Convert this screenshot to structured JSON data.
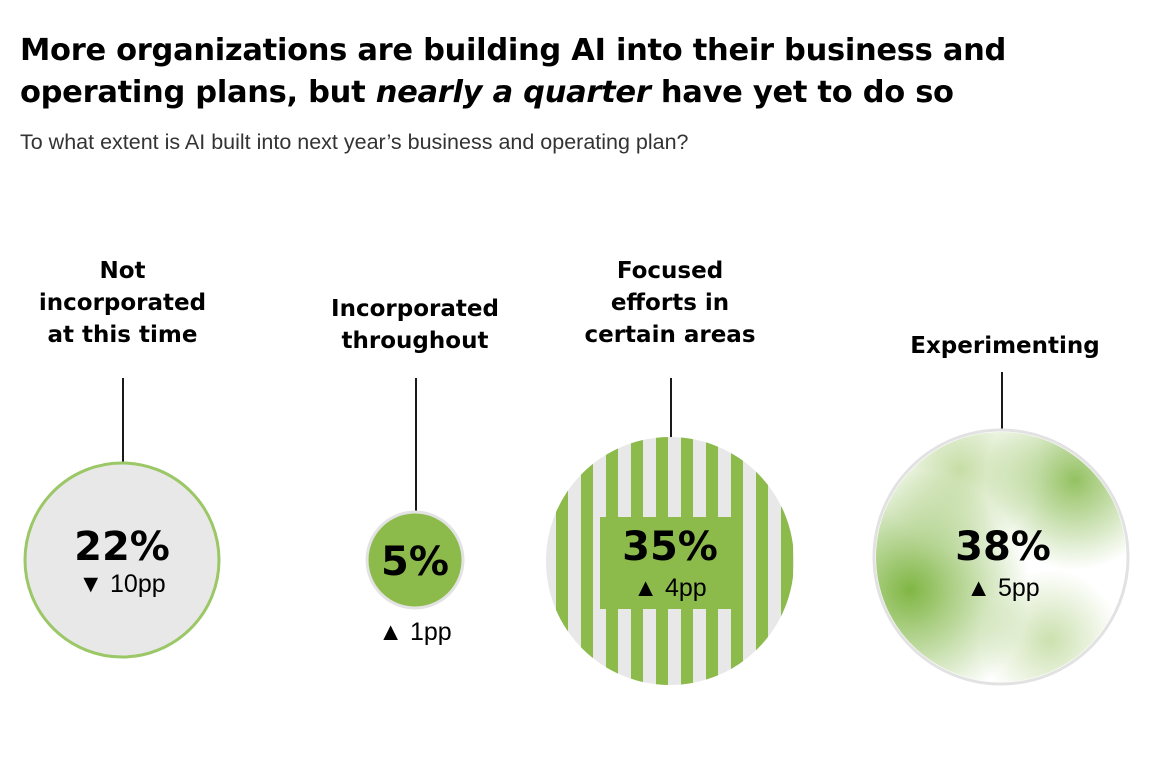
{
  "title": {
    "lead": "More organizations are building AI into their business and operating plans, but",
    "emphasis": "nearly a quarter",
    "tail": "have yet to do so"
  },
  "subtitle": "To what extent is AI built into next year’s business and operating plan?",
  "colors": {
    "green": "#8cbb4c",
    "light_gray": "#e8e8e8",
    "outline": "#9bc766"
  },
  "chart_data": {
    "type": "bubble",
    "categories": [
      "Not incorporated at this time",
      "Incorporated throughout",
      "Focused efforts in certain areas",
      "Experimenting"
    ],
    "values": [
      22,
      5,
      35,
      38
    ],
    "unit": "%",
    "changes_pp": [
      -10,
      1,
      4,
      5
    ],
    "value_labels": [
      "22%",
      "5%",
      "35%",
      "38%"
    ],
    "change_labels": [
      "▼ 10pp",
      "▲ 1pp",
      "▲ 4pp",
      "▲ 5pp"
    ],
    "category_labels": [
      "Not\nincorporated\nat this time",
      "Incorporated\nthroughout",
      "Focused\nefforts in\ncertain areas",
      "Experimenting"
    ]
  }
}
